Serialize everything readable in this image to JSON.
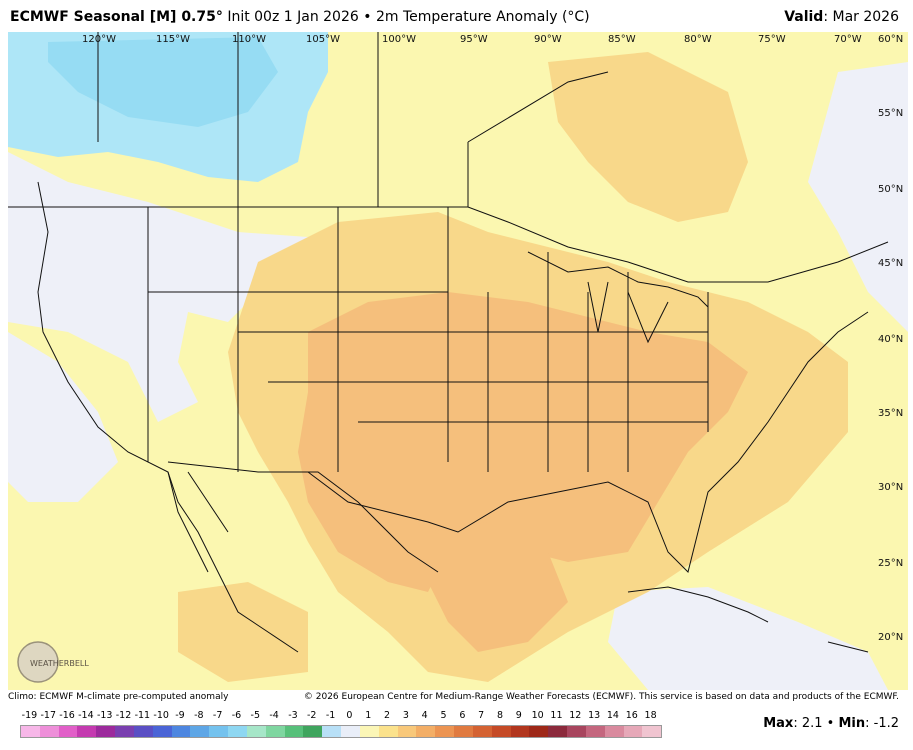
{
  "header": {
    "model": "ECMWF Seasonal [M] 0.75",
    "degree_mark": "°",
    "init": "Init 00z 1 Jan 2026",
    "bullet": "•",
    "field": "2m Temperature Anomaly (°C)",
    "valid_label": "Valid",
    "valid_value": "Mar 2026"
  },
  "longitude_labels": [
    "120°W",
    "115°W",
    "110°W",
    "105°W",
    "100°W",
    "95°W",
    "90°W",
    "85°W",
    "80°W",
    "75°W",
    "70°W",
    "60°N"
  ],
  "latitude_labels": [
    "55°N",
    "50°N",
    "45°N",
    "40°N",
    "35°N",
    "30°N",
    "25°N",
    "20°N"
  ],
  "footer": {
    "climo": "Climo: ECMWF M-climate pre-computed anomaly",
    "copyright": "© 2026 European Centre for Medium-Range Weather Forecasts (ECMWF). This service is based on data and products of the ECMWF.",
    "max_label": "Max",
    "max_value": "2.1",
    "min_label": "Min",
    "min_value": "-1.2",
    "logo_text": "WEATHERBELL"
  },
  "colorbar": {
    "ticks": [
      "-19",
      "-17",
      "-16",
      "-14",
      "-13",
      "-12",
      "-11",
      "-10",
      "-9",
      "-8",
      "-7",
      "-6",
      "-5",
      "-4",
      "-3",
      "-2",
      "-1",
      "0",
      "1",
      "2",
      "3",
      "4",
      "5",
      "6",
      "7",
      "8",
      "9",
      "10",
      "11",
      "12",
      "13",
      "14",
      "16",
      "18"
    ],
    "colors": [
      "#f7b7e8",
      "#ee8fd9",
      "#e15fc8",
      "#c43ab0",
      "#9c2a9c",
      "#7a3fb0",
      "#5a4fc4",
      "#4a64d6",
      "#4d86e0",
      "#5ea6e6",
      "#74c2ee",
      "#8ed7f2",
      "#a6e6c8",
      "#7fd6a0",
      "#57c07a",
      "#3fa55e",
      "#b8e0f7",
      "#e9eef8",
      "#fbf6b6",
      "#fbe28c",
      "#f8c87a",
      "#f3ae66",
      "#ec9452",
      "#e07a40",
      "#d46232",
      "#c54a26",
      "#b2361e",
      "#9e2818",
      "#8c2a3c",
      "#a8455e",
      "#c4667e",
      "#d98a9e",
      "#e6a8b8",
      "#f0c4d0"
    ]
  },
  "legend_colors": {
    "land_base": "#fbf7b0",
    "pale_yellow": "#faf1a4",
    "light_orange": "#f8d88a",
    "orange": "#f5bf7c",
    "light_blue": "#aee6f7",
    "near_zero": "#eef0f8"
  }
}
